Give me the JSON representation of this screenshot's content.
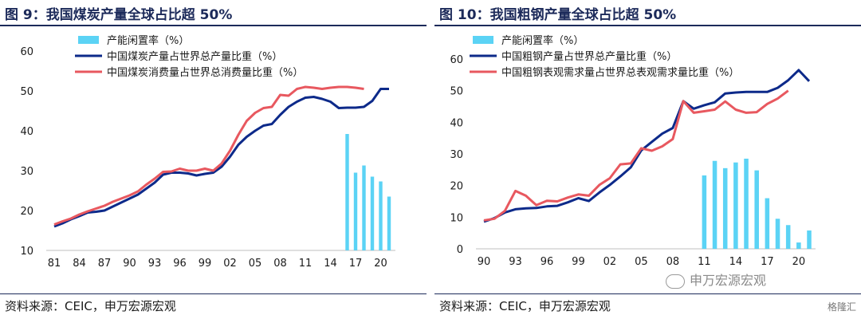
{
  "left": {
    "title": "图 9：我国煤炭产量全球占比超 50%",
    "source": "资料来源：CEIC，申万宏源宏观"
  },
  "right": {
    "title": "图 10：我国粗钢产量全球占比超 50%",
    "source": "资料来源：CEIC，申万宏源宏观"
  },
  "watermark": "申万宏源宏观",
  "brand": "格隆汇",
  "colors": {
    "bar": "#5bd3f5",
    "navy": "#0d2a8a",
    "red": "#e8585f"
  },
  "chart_data": [
    {
      "type": "bar+line",
      "ylim": [
        10,
        60
      ],
      "yticks": [
        10,
        20,
        30,
        40,
        50,
        60
      ],
      "xlim": [
        1981,
        2021
      ],
      "xticks": [
        1981,
        1984,
        1987,
        1990,
        1993,
        1996,
        1999,
        2002,
        2005,
        2008,
        2011,
        2014,
        2017,
        2020
      ],
      "xtick_labels": [
        "81",
        "84",
        "87",
        "90",
        "93",
        "96",
        "99",
        "02",
        "05",
        "08",
        "11",
        "14",
        "17",
        "20"
      ],
      "series": [
        {
          "name": "产能闲置率（%）",
          "kind": "bar",
          "x": [
            2016,
            2017,
            2018,
            2019,
            2020,
            2021
          ],
          "values": [
            39.2,
            29.5,
            31.3,
            28.5,
            27.3,
            23.5
          ]
        },
        {
          "name": "中国煤炭产量占世界总产量比重（%）",
          "kind": "line",
          "x": [
            1981,
            1982,
            1983,
            1984,
            1985,
            1986,
            1987,
            1988,
            1989,
            1990,
            1991,
            1992,
            1993,
            1994,
            1995,
            1996,
            1997,
            1998,
            1999,
            2000,
            2001,
            2002,
            2003,
            2004,
            2005,
            2006,
            2007,
            2008,
            2009,
            2010,
            2011,
            2012,
            2013,
            2014,
            2015,
            2016,
            2017,
            2018,
            2019,
            2020,
            2021
          ],
          "values": [
            16.0,
            16.8,
            17.8,
            18.6,
            19.5,
            19.7,
            20.0,
            21.0,
            22.0,
            23.0,
            24.0,
            25.5,
            27.0,
            29.0,
            29.5,
            29.5,
            29.3,
            28.8,
            29.2,
            29.5,
            31.0,
            33.5,
            36.5,
            38.5,
            40.0,
            41.3,
            41.7,
            44.0,
            46.0,
            47.3,
            48.3,
            48.5,
            48.0,
            47.3,
            45.7,
            45.8,
            45.8,
            46.0,
            47.5,
            50.5,
            50.5
          ]
        },
        {
          "name": "中国煤炭消费量占世界总消费量比重（%）",
          "kind": "line",
          "x": [
            1981,
            1982,
            1983,
            1984,
            1985,
            1986,
            1987,
            1988,
            1989,
            1990,
            1991,
            1992,
            1993,
            1994,
            1995,
            1996,
            1997,
            1998,
            1999,
            2000,
            2001,
            2002,
            2003,
            2004,
            2005,
            2006,
            2007,
            2008,
            2009,
            2010,
            2011,
            2012,
            2013,
            2014,
            2015,
            2016,
            2017,
            2018
          ],
          "values": [
            16.5,
            17.3,
            18.0,
            19.0,
            19.8,
            20.5,
            21.2,
            22.2,
            23.0,
            23.8,
            24.8,
            26.5,
            28.0,
            29.7,
            29.8,
            30.5,
            30.0,
            30.0,
            30.5,
            30.0,
            31.8,
            35.0,
            39.0,
            42.5,
            44.5,
            45.7,
            46.0,
            49.0,
            48.8,
            50.5,
            51.0,
            50.8,
            50.5,
            50.8,
            51.0,
            51.0,
            50.8,
            50.5
          ]
        }
      ]
    },
    {
      "type": "bar+line",
      "ylim": [
        0,
        60
      ],
      "yticks": [
        0,
        10,
        20,
        30,
        40,
        50,
        60
      ],
      "xlim": [
        1990,
        2021
      ],
      "xticks": [
        1990,
        1993,
        1996,
        1999,
        2002,
        2005,
        2008,
        2011,
        2014,
        2017,
        2020
      ],
      "xtick_labels": [
        "90",
        "93",
        "96",
        "99",
        "02",
        "05",
        "08",
        "11",
        "14",
        "17",
        "20"
      ],
      "series": [
        {
          "name": "产能闲置率（%）",
          "kind": "bar",
          "x": [
            2011,
            2012,
            2013,
            2014,
            2015,
            2016,
            2017,
            2018,
            2019,
            2020,
            2021
          ],
          "values": [
            23.2,
            27.8,
            25.5,
            27.3,
            28.5,
            24.8,
            16.0,
            9.5,
            7.5,
            2.0,
            5.8
          ]
        },
        {
          "name": "中国粗钢产量占世界总产量比重（%）",
          "kind": "line",
          "x": [
            1990,
            1991,
            1992,
            1993,
            1994,
            1995,
            1996,
            1997,
            1998,
            1999,
            2000,
            2001,
            2002,
            2003,
            2004,
            2005,
            2006,
            2007,
            2008,
            2009,
            2010,
            2011,
            2012,
            2013,
            2014,
            2015,
            2016,
            2017,
            2018,
            2019,
            2020,
            2021
          ],
          "values": [
            8.6,
            9.7,
            11.5,
            12.5,
            12.8,
            12.9,
            13.4,
            13.6,
            14.7,
            16.0,
            15.1,
            17.8,
            20.2,
            22.9,
            25.8,
            31.1,
            33.8,
            36.4,
            38.2,
            46.7,
            44.3,
            45.4,
            46.3,
            49.1,
            49.4,
            49.6,
            49.6,
            49.6,
            50.9,
            53.3,
            56.5,
            53.0
          ]
        },
        {
          "name": "中国粗钢表观需求量占世界总表观需求量比重（%）",
          "kind": "line",
          "x": [
            1990,
            1991,
            1992,
            1993,
            1994,
            1995,
            1996,
            1997,
            1998,
            1999,
            2000,
            2001,
            2002,
            2003,
            2004,
            2005,
            2006,
            2007,
            2008,
            2009,
            2010,
            2011,
            2012,
            2013,
            2014,
            2015,
            2016,
            2017,
            2018,
            2019
          ],
          "values": [
            9.0,
            9.5,
            12.0,
            18.3,
            16.8,
            13.8,
            15.2,
            15.0,
            16.2,
            17.2,
            16.8,
            20.2,
            22.3,
            26.7,
            27.0,
            31.8,
            31.0,
            32.4,
            34.7,
            46.7,
            43.0,
            43.5,
            44.0,
            46.6,
            44.0,
            43.0,
            43.2,
            45.8,
            47.5,
            50.0
          ]
        }
      ]
    }
  ]
}
